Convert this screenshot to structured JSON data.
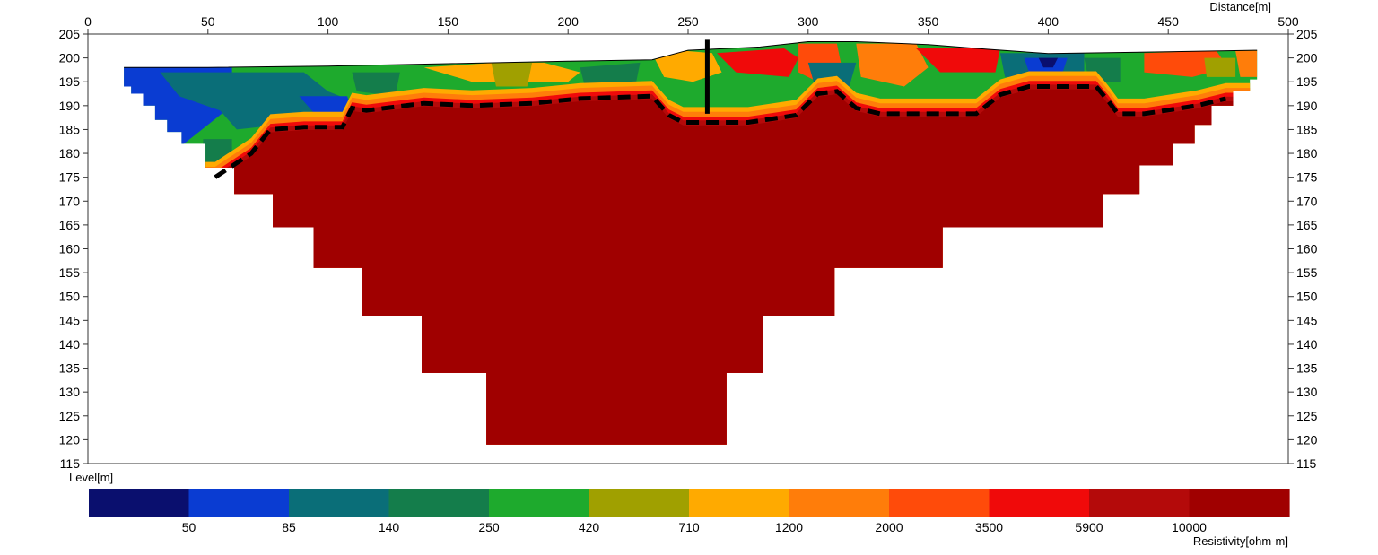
{
  "chart_data": {
    "type": "heatmap",
    "title": "",
    "xlabel": "Distance[m]",
    "ylabel": "Level[m]",
    "xlim": [
      0,
      500
    ],
    "ylim": [
      115,
      205
    ],
    "x_ticks": [
      0,
      50,
      100,
      150,
      200,
      250,
      300,
      350,
      400,
      450,
      500
    ],
    "y_ticks": [
      115,
      120,
      125,
      130,
      135,
      140,
      145,
      150,
      155,
      160,
      165,
      170,
      175,
      180,
      185,
      190,
      195,
      200,
      205
    ],
    "grid": false,
    "colorbar": {
      "label": "Resistivity[ohm-m]",
      "placement": "bottom",
      "colors": [
        "#0a0f6e",
        "#0a3cd2",
        "#0a6e78",
        "#147d4b",
        "#1eaa2d",
        "#a0a000",
        "#ffaa00",
        "#ff7d0a",
        "#ff4b0a",
        "#f00a0a",
        "#b40a0a",
        "#a00000"
      ],
      "tick_labels": [
        "50",
        "85",
        "140",
        "250",
        "420",
        "710",
        "1200",
        "2000",
        "3500",
        "5900",
        "10000"
      ]
    },
    "topography": [
      [
        15,
        198
      ],
      [
        50,
        198
      ],
      [
        100,
        198.3
      ],
      [
        150,
        198.8
      ],
      [
        200,
        199.3
      ],
      [
        235,
        199.6
      ],
      [
        250,
        201.6
      ],
      [
        280,
        202.3
      ],
      [
        300,
        203.4
      ],
      [
        320,
        203.4
      ],
      [
        350,
        202.8
      ],
      [
        375,
        201.8
      ],
      [
        400,
        200.9
      ],
      [
        450,
        201.3
      ],
      [
        487,
        201.6
      ]
    ],
    "bottom_boundary": [
      [
        15,
        198
      ],
      [
        15,
        194
      ],
      [
        18,
        194
      ],
      [
        18,
        192.5
      ],
      [
        23,
        192.5
      ],
      [
        23,
        190
      ],
      [
        28,
        190
      ],
      [
        28,
        187
      ],
      [
        33,
        187
      ],
      [
        33,
        184.5
      ],
      [
        39,
        184.5
      ],
      [
        39,
        182
      ],
      [
        49,
        182
      ],
      [
        49,
        177
      ],
      [
        61,
        177
      ],
      [
        61,
        171.5
      ],
      [
        77,
        171.5
      ],
      [
        77,
        164.5
      ],
      [
        94,
        164.5
      ],
      [
        94,
        156
      ],
      [
        114,
        156
      ],
      [
        114,
        146
      ],
      [
        139,
        146
      ],
      [
        139,
        134
      ],
      [
        166,
        134
      ],
      [
        166,
        119
      ],
      [
        266,
        119
      ],
      [
        266,
        134
      ],
      [
        281,
        134
      ],
      [
        281,
        146
      ],
      [
        311,
        146
      ],
      [
        311,
        156
      ],
      [
        356,
        156
      ],
      [
        356,
        164.5
      ],
      [
        423,
        164.5
      ],
      [
        423,
        171.5
      ],
      [
        438,
        171.5
      ],
      [
        438,
        177.5
      ],
      [
        452,
        177.5
      ],
      [
        452,
        182
      ],
      [
        461,
        182
      ],
      [
        461,
        186
      ],
      [
        468,
        186
      ],
      [
        468,
        190
      ],
      [
        477,
        190
      ],
      [
        477,
        193
      ],
      [
        484,
        193
      ],
      [
        484,
        195.5
      ],
      [
        487,
        195.5
      ],
      [
        487,
        201.6
      ]
    ],
    "bedrock_interface": [
      [
        53,
        175
      ],
      [
        68,
        180
      ],
      [
        76,
        185
      ],
      [
        90,
        185.5
      ],
      [
        106,
        185.5
      ],
      [
        110,
        189.5
      ],
      [
        116,
        189
      ],
      [
        140,
        190.5
      ],
      [
        160,
        190
      ],
      [
        185,
        190.5
      ],
      [
        205,
        191.5
      ],
      [
        235,
        192
      ],
      [
        242,
        188
      ],
      [
        248,
        186.5
      ],
      [
        275,
        186.5
      ],
      [
        295,
        188
      ],
      [
        304,
        192.5
      ],
      [
        312,
        193
      ],
      [
        320,
        189.5
      ],
      [
        330,
        188.3
      ],
      [
        370,
        188.3
      ],
      [
        380,
        192.3
      ],
      [
        392,
        194
      ],
      [
        420,
        194
      ],
      [
        425,
        191
      ],
      [
        429,
        188.3
      ],
      [
        440,
        188.3
      ],
      [
        462,
        190
      ],
      [
        474,
        191.5
      ]
    ],
    "borehole": {
      "x": 258,
      "y_top": 203.8,
      "y_bottom": 188.3
    }
  }
}
